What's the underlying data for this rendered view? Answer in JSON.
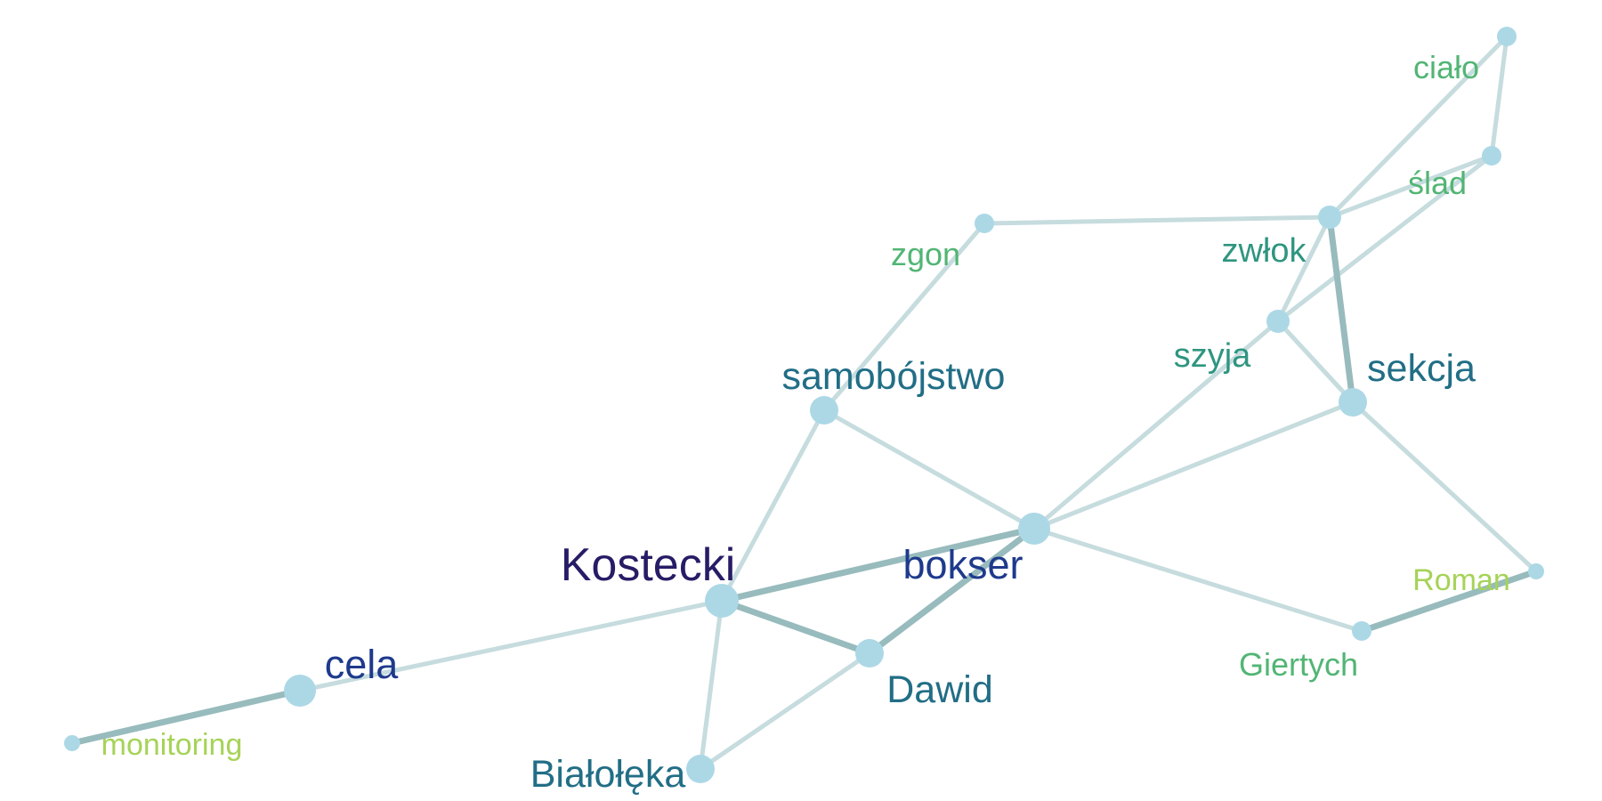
{
  "colors": {
    "node_fill": "#acd8e6",
    "edge_light": "#c6dcde",
    "edge_dark": "#98bbbd",
    "label_navy": "#271c66",
    "label_blue": "#1e3a8c",
    "label_teal": "#216e86",
    "label_seagreen": "#2f9580",
    "label_green": "#52b574",
    "label_lime": "#a6d358"
  },
  "nodes": [
    {
      "id": "cialo",
      "label": "ciało",
      "importance": 1,
      "color": "label_green"
    },
    {
      "id": "slad",
      "label": "ślad",
      "importance": 1,
      "color": "label_green"
    },
    {
      "id": "zwlok",
      "label": "zwłok",
      "importance": 2,
      "color": "label_seagreen"
    },
    {
      "id": "zgon",
      "label": "zgon",
      "importance": 1,
      "color": "label_green"
    },
    {
      "id": "szyja",
      "label": "szyja",
      "importance": 2,
      "color": "label_seagreen"
    },
    {
      "id": "sekcja",
      "label": "sekcja",
      "importance": 3,
      "color": "label_teal"
    },
    {
      "id": "samobojstwo",
      "label": "samobójstwo",
      "importance": 3,
      "color": "label_teal"
    },
    {
      "id": "bokser",
      "label": "bokser",
      "importance": 4,
      "color": "label_blue"
    },
    {
      "id": "kostecki",
      "label": "Kostecki",
      "importance": 5,
      "color": "label_navy"
    },
    {
      "id": "roman",
      "label": "Roman",
      "importance": 0,
      "color": "label_lime"
    },
    {
      "id": "giertych",
      "label": "Giertych",
      "importance": 1,
      "color": "label_green"
    },
    {
      "id": "dawid",
      "label": "Dawid",
      "importance": 3,
      "color": "label_teal"
    },
    {
      "id": "cela",
      "label": "cela",
      "importance": 4,
      "color": "label_blue"
    },
    {
      "id": "monitoring",
      "label": "monitoring",
      "importance": 0,
      "color": "label_lime"
    },
    {
      "id": "bialoleka",
      "label": "Białołęka",
      "importance": 3,
      "color": "label_teal"
    }
  ],
  "edges": [
    {
      "source": "cialo",
      "target": "zwlok",
      "strength": "weak"
    },
    {
      "source": "cialo",
      "target": "slad",
      "strength": "weak"
    },
    {
      "source": "slad",
      "target": "zwlok",
      "strength": "weak"
    },
    {
      "source": "slad",
      "target": "szyja",
      "strength": "weak"
    },
    {
      "source": "zgon",
      "target": "zwlok",
      "strength": "weak"
    },
    {
      "source": "zgon",
      "target": "samobojstwo",
      "strength": "weak"
    },
    {
      "source": "zwlok",
      "target": "szyja",
      "strength": "weak"
    },
    {
      "source": "zwlok",
      "target": "sekcja",
      "strength": "strong"
    },
    {
      "source": "szyja",
      "target": "sekcja",
      "strength": "weak"
    },
    {
      "source": "szyja",
      "target": "bokser",
      "strength": "weak"
    },
    {
      "source": "sekcja",
      "target": "bokser",
      "strength": "weak"
    },
    {
      "source": "sekcja",
      "target": "roman",
      "strength": "weak"
    },
    {
      "source": "samobojstwo",
      "target": "bokser",
      "strength": "weak"
    },
    {
      "source": "samobojstwo",
      "target": "kostecki",
      "strength": "weak"
    },
    {
      "source": "bokser",
      "target": "kostecki",
      "strength": "strong"
    },
    {
      "source": "bokser",
      "target": "dawid",
      "strength": "strong"
    },
    {
      "source": "bokser",
      "target": "giertych",
      "strength": "weak"
    },
    {
      "source": "kostecki",
      "target": "dawid",
      "strength": "strong"
    },
    {
      "source": "kostecki",
      "target": "cela",
      "strength": "weak"
    },
    {
      "source": "kostecki",
      "target": "bialoleka",
      "strength": "weak"
    },
    {
      "source": "dawid",
      "target": "bialoleka",
      "strength": "weak"
    },
    {
      "source": "giertych",
      "target": "roman",
      "strength": "strong"
    },
    {
      "source": "cela",
      "target": "monitoring",
      "strength": "strong"
    }
  ]
}
